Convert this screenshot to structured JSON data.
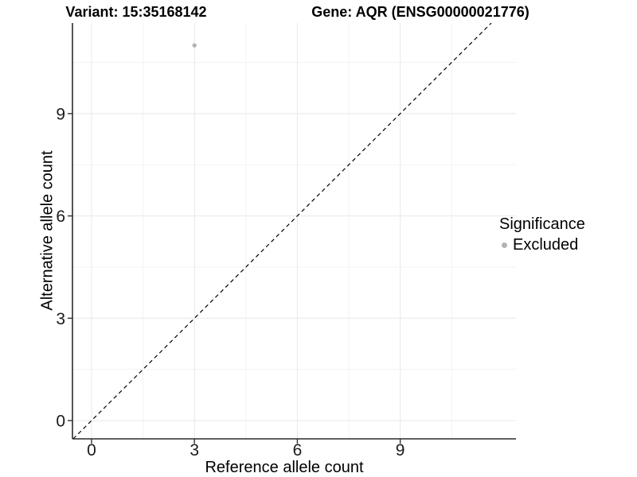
{
  "header": {
    "variant_title": "Variant: 15:35168142",
    "gene_title": "Gene: AQR (ENSG00000021776)"
  },
  "legend": {
    "title": "Significance",
    "items": [
      {
        "label": "Excluded",
        "color": "#b3b3b3"
      }
    ]
  },
  "chart_data": {
    "type": "scatter",
    "title": "Variant: 15:35168142 / Gene: AQR (ENSG00000021776)",
    "xlabel": "Reference allele count",
    "ylabel": "Alternative allele count",
    "x_ticks": [
      0,
      3,
      6,
      9
    ],
    "y_ticks": [
      0,
      3,
      6,
      9
    ],
    "tick_step": 3,
    "xlim": [
      -0.56,
      12.37
    ],
    "ylim": [
      -0.54,
      11.66
    ],
    "grid": "major+minor",
    "legend_position": "right",
    "series": [
      {
        "name": "Excluded",
        "color": "#b3b3b3",
        "points": [
          {
            "x": 3,
            "y": 11
          }
        ]
      }
    ],
    "reference_line": {
      "kind": "identity y=x",
      "style": "dashed",
      "color": "#000000"
    }
  },
  "style": {
    "axis_line_color": "#2a2a2a",
    "tick_mark_color": "#333333",
    "tick_label_color": "#1a1a1a",
    "grid_major_color": "#e8e8e8",
    "grid_minor_color": "#f3f3f3",
    "point_color": "#b3b3b3"
  }
}
